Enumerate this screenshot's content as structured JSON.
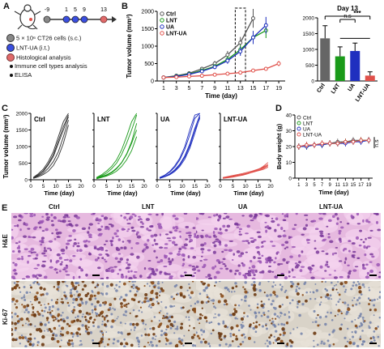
{
  "colors": {
    "Ctrl": "#555555",
    "LNT": "#1a9a1a",
    "UA": "#1f2fbf",
    "LNT-UA": "#e0504a"
  },
  "panelA": {
    "label": "A",
    "timeline_ticks": [
      "-9",
      "1",
      "5",
      "9",
      "13"
    ],
    "legend": [
      {
        "text": "5 × 10⁶ CT26 cells (s.c.)",
        "marker": "gray-circle"
      },
      {
        "text": "LNT-UA (i.t.)",
        "marker": "blue-circle"
      },
      {
        "text": "Histological analysis",
        "marker": "red-circle"
      },
      {
        "text": "Immune cell types analysis",
        "marker": "bullet"
      },
      {
        "text": "ELISA",
        "marker": "bullet"
      }
    ],
    "mouse_icon": "mouse-icon"
  },
  "panelB": {
    "label": "B"
  },
  "panelC": {
    "label": "C"
  },
  "panelD": {
    "label": "D"
  },
  "panelE": {
    "label": "E",
    "columns": [
      "Ctrl",
      "LNT",
      "UA",
      "LNT-UA"
    ],
    "rows": [
      "H&E",
      "Ki-67"
    ]
  },
  "chart_data": [
    {
      "id": "B-left",
      "type": "line",
      "xlabel": "Time (day)",
      "ylabel": "Tumor volume (mm³)",
      "xlim": [
        0,
        20
      ],
      "ylim": [
        0,
        2000
      ],
      "xticks": [
        1,
        3,
        5,
        7,
        9,
        11,
        13,
        15,
        17,
        19
      ],
      "yticks": [
        0,
        500,
        1000,
        1500,
        2000
      ],
      "x": [
        1,
        3,
        5,
        7,
        9,
        11,
        13,
        15,
        17,
        19
      ],
      "series": [
        {
          "name": "Ctrl",
          "values": [
            100,
            150,
            220,
            350,
            500,
            750,
            1100,
            1800,
            null,
            null
          ]
        },
        {
          "name": "LNT",
          "values": [
            100,
            140,
            200,
            300,
            420,
            620,
            900,
            1250,
            1450,
            null
          ]
        },
        {
          "name": "UA",
          "values": [
            100,
            130,
            190,
            280,
            400,
            580,
            850,
            1250,
            1600,
            null
          ]
        },
        {
          "name": "LNT-UA",
          "values": [
            100,
            110,
            130,
            150,
            180,
            210,
            240,
            300,
            350,
            500
          ]
        }
      ]
    },
    {
      "id": "B-right",
      "type": "bar",
      "title": "Day 13",
      "categories": [
        "Ctrl",
        "LNT",
        "UA",
        "LNT-UA"
      ],
      "values": [
        1350,
        780,
        950,
        170
      ],
      "errors": [
        400,
        300,
        250,
        120
      ],
      "ylim": [
        0,
        2000
      ],
      "yticks": [
        0,
        500,
        1000,
        1500,
        2000
      ],
      "annotations": [
        "n.s",
        "***"
      ]
    },
    {
      "id": "C",
      "type": "line",
      "ylabel": "Tumor volume (mm³)",
      "xlabel": "Time (day)",
      "ylim": [
        0,
        2000
      ],
      "xlim": [
        0,
        20
      ],
      "yticks": [
        0,
        500,
        1000,
        1500,
        2000
      ],
      "xticks": [
        0,
        5,
        10,
        15,
        20
      ],
      "subplots": [
        {
          "name": "Ctrl",
          "x": [
            1,
            3,
            5,
            7,
            9,
            11,
            13,
            15
          ],
          "lines": [
            [
              60,
              150,
              250,
              450,
              700,
              1100,
              1500,
              1900
            ],
            [
              50,
              120,
              200,
              350,
              550,
              850,
              1300,
              1800
            ],
            [
              70,
              180,
              320,
              550,
              850,
              1300,
              1750,
              2000
            ],
            [
              40,
              90,
              160,
              260,
              430,
              700,
              1100,
              1650
            ],
            [
              55,
              140,
              270,
              480,
              760,
              1180,
              1600,
              1950
            ]
          ]
        },
        {
          "name": "LNT",
          "x": [
            1,
            3,
            5,
            7,
            9,
            11,
            13,
            15,
            17
          ],
          "lines": [
            [
              60,
              120,
              200,
              330,
              500,
              760,
              1100,
              1500,
              1950
            ],
            [
              40,
              80,
              130,
              210,
              330,
              510,
              760,
              1100,
              1500
            ],
            [
              70,
              150,
              260,
              400,
              600,
              900,
              1300,
              1750,
              2000
            ],
            [
              50,
              100,
              150,
              230,
              350,
              520,
              780,
              1150,
              1700
            ],
            [
              30,
              70,
              110,
              170,
              260,
              400,
              600,
              880,
              1300
            ]
          ]
        },
        {
          "name": "UA",
          "x": [
            1,
            3,
            5,
            7,
            9,
            11,
            13,
            15,
            17
          ],
          "lines": [
            [
              50,
              100,
              180,
              300,
              470,
              720,
              1080,
              1550,
              1950
            ],
            [
              60,
              130,
              230,
              380,
              600,
              920,
              1350,
              1850,
              2000
            ],
            [
              40,
              90,
              150,
              250,
              400,
              620,
              950,
              1400,
              1900
            ],
            [
              70,
              140,
              250,
              420,
              650,
              1000,
              1500,
              1950,
              2000
            ],
            [
              45,
              95,
              170,
              280,
              440,
              680,
              1020,
              1500,
              1850
            ]
          ]
        },
        {
          "name": "LNT-UA",
          "x": [
            1,
            3,
            5,
            7,
            9,
            11,
            13,
            15,
            17,
            19
          ],
          "lines": [
            [
              50,
              70,
              90,
              120,
              150,
              190,
              230,
              280,
              340,
              420
            ],
            [
              60,
              90,
              110,
              140,
              170,
              200,
              230,
              270,
              310,
              380
            ],
            [
              40,
              60,
              80,
              110,
              140,
              180,
              240,
              300,
              400,
              520
            ],
            [
              70,
              100,
              130,
              160,
              190,
              230,
              270,
              320,
              380,
              460
            ],
            [
              55,
              75,
              100,
              130,
              160,
              200,
              250,
              310,
              360,
              430
            ]
          ]
        }
      ]
    },
    {
      "id": "D",
      "type": "line",
      "xlabel": "Time (day)",
      "ylabel": "Body weight (g)",
      "ylim": [
        0,
        40
      ],
      "yticks": [
        0,
        10,
        20,
        30,
        40
      ],
      "xticks": [
        1,
        3,
        5,
        7,
        9,
        11,
        13,
        15,
        17,
        19
      ],
      "x": [
        1,
        3,
        5,
        7,
        9,
        11,
        13,
        15,
        17,
        19
      ],
      "annotation": "n.s",
      "series": [
        {
          "name": "Ctrl",
          "values": [
            20,
            21,
            21,
            22,
            22,
            23,
            23,
            24,
            24,
            24
          ]
        },
        {
          "name": "LNT",
          "values": [
            20,
            20,
            21,
            21,
            22,
            22,
            23,
            23,
            24,
            24
          ]
        },
        {
          "name": "UA",
          "values": [
            20,
            20,
            21,
            21,
            22,
            22,
            22,
            23,
            23,
            24
          ]
        },
        {
          "name": "LNT-UA",
          "values": [
            20,
            21,
            21,
            22,
            22,
            22,
            23,
            23,
            24,
            24
          ]
        }
      ]
    }
  ]
}
